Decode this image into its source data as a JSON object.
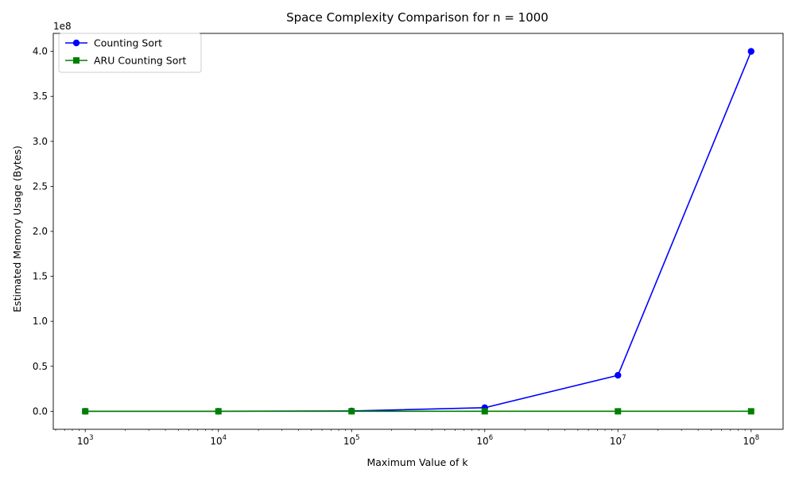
{
  "chart_data": {
    "type": "line",
    "title": "Space Complexity Comparison for n = 1000",
    "xlabel": "Maximum Value of k",
    "ylabel": "Estimated Memory Usage (Bytes)",
    "x_scale": "log",
    "x": [
      1000,
      10000,
      100000,
      1000000,
      10000000,
      100000000
    ],
    "x_tick_labels": [
      {
        "base": "10",
        "exp": "3"
      },
      {
        "base": "10",
        "exp": "4"
      },
      {
        "base": "10",
        "exp": "5"
      },
      {
        "base": "10",
        "exp": "6"
      },
      {
        "base": "10",
        "exp": "7"
      },
      {
        "base": "10",
        "exp": "8"
      }
    ],
    "y_scale_offset": "1e8",
    "y_tick_values": [
      0,
      0.5,
      1.0,
      1.5,
      2.0,
      2.5,
      3.0,
      3.5,
      4.0
    ],
    "y_tick_labels": [
      "0.0",
      "0.5",
      "1.0",
      "1.5",
      "2.0",
      "2.5",
      "3.0",
      "3.5",
      "4.0"
    ],
    "ylim": [
      -20000000,
      420000000
    ],
    "grid": false,
    "legend_position": "top-left",
    "series": [
      {
        "name": "Counting Sort",
        "color": "#0000ff",
        "marker": "circle",
        "values": [
          4000,
          40000,
          400000,
          4000000,
          40000000,
          400000000
        ]
      },
      {
        "name": "ARU Counting Sort",
        "color": "#008000",
        "marker": "square",
        "values": [
          4000,
          4000,
          4000,
          4000,
          4000,
          4000
        ]
      }
    ]
  }
}
